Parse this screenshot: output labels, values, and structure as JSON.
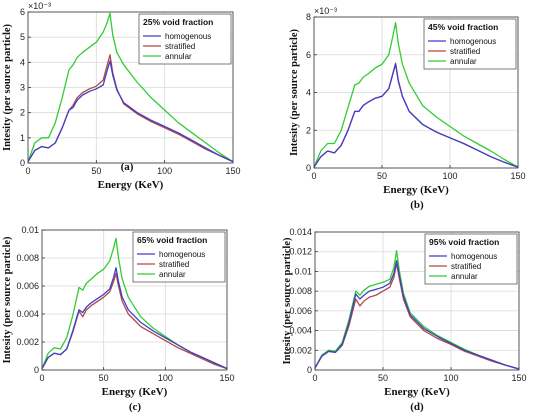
{
  "colors": {
    "homogenous": "#3f3fc8",
    "stratified": "#b04848",
    "annular": "#33cc33",
    "grid": "#d9d9d9",
    "axis": "#333333"
  },
  "chart_data": [
    {
      "type": "line",
      "panel": "(a)",
      "legend_title": "25% void fraction",
      "legend_placement": "top-right",
      "grid": true,
      "xlabel": "Energy (KeV)",
      "ylabel": "Intesity (per source particle)",
      "scale_label": "×10⁻³",
      "xlim": [
        0,
        150
      ],
      "ylim": [
        0,
        6
      ],
      "xticks": [
        0,
        50,
        100,
        150
      ],
      "xtick_labels": [
        "0",
        "50",
        "100",
        "150"
      ],
      "yticks": [
        0,
        1,
        2,
        3,
        4,
        5,
        6
      ],
      "ytick_labels": [
        "0",
        "1",
        "2",
        "3",
        "4",
        "5",
        "6"
      ],
      "x": [
        0,
        5,
        10,
        15,
        20,
        25,
        30,
        33,
        36,
        40,
        45,
        50,
        55,
        58,
        60,
        62,
        65,
        70,
        80,
        90,
        100,
        110,
        120,
        130,
        140,
        150
      ],
      "series": [
        {
          "name": "homogenous",
          "values": [
            0.05,
            0.5,
            0.65,
            0.6,
            0.8,
            1.4,
            2.1,
            2.2,
            2.5,
            2.7,
            2.85,
            2.95,
            3.1,
            3.7,
            4.05,
            3.5,
            2.9,
            2.4,
            2.0,
            1.7,
            1.45,
            1.2,
            0.9,
            0.6,
            0.3,
            0.05
          ]
        },
        {
          "name": "stratified",
          "values": [
            0.05,
            0.5,
            0.65,
            0.6,
            0.8,
            1.4,
            2.1,
            2.3,
            2.6,
            2.8,
            2.95,
            3.05,
            3.3,
            3.9,
            4.3,
            3.6,
            2.95,
            2.35,
            1.95,
            1.65,
            1.4,
            1.15,
            0.85,
            0.55,
            0.3,
            0.05
          ]
        },
        {
          "name": "annular",
          "values": [
            0.05,
            0.8,
            1.0,
            1.0,
            1.6,
            2.6,
            3.7,
            3.9,
            4.2,
            4.4,
            4.6,
            4.8,
            5.2,
            5.6,
            5.95,
            5.1,
            4.4,
            3.9,
            3.2,
            2.6,
            2.1,
            1.6,
            1.2,
            0.8,
            0.4,
            0.05
          ]
        }
      ]
    },
    {
      "type": "line",
      "panel": "(b)",
      "legend_title": "45% void fraction",
      "legend_placement": "top-right",
      "grid": true,
      "xlabel": "Energy (KeV)",
      "ylabel": "Intesity (per source particle)",
      "scale_label": "×10⁻³",
      "xlim": [
        0,
        150
      ],
      "ylim": [
        0,
        8
      ],
      "xticks": [
        0,
        50,
        100,
        150
      ],
      "xtick_labels": [
        "0",
        "50",
        "100",
        "150"
      ],
      "yticks": [
        0,
        2,
        4,
        6,
        8
      ],
      "ytick_labels": [
        "0",
        "2",
        "4",
        "6",
        "8"
      ],
      "x": [
        0,
        5,
        10,
        15,
        20,
        25,
        30,
        33,
        36,
        40,
        45,
        50,
        55,
        58,
        60,
        62,
        65,
        70,
        80,
        90,
        100,
        110,
        120,
        130,
        140,
        150
      ],
      "series": [
        {
          "name": "homogenous",
          "values": [
            0.05,
            0.6,
            0.9,
            0.8,
            1.2,
            2.0,
            3.0,
            3.0,
            3.3,
            3.5,
            3.7,
            3.8,
            4.2,
            5.0,
            5.5,
            4.6,
            3.8,
            3.0,
            2.3,
            1.9,
            1.6,
            1.3,
            0.95,
            0.6,
            0.3,
            0.05
          ]
        },
        {
          "name": "stratified",
          "values": [
            0.05,
            0.6,
            0.9,
            0.8,
            1.2,
            2.0,
            3.0,
            3.0,
            3.3,
            3.5,
            3.7,
            3.8,
            4.2,
            5.0,
            5.55,
            4.65,
            3.8,
            3.0,
            2.3,
            1.9,
            1.6,
            1.3,
            0.95,
            0.6,
            0.3,
            0.05
          ]
        },
        {
          "name": "annular",
          "values": [
            0.05,
            0.9,
            1.3,
            1.3,
            2.0,
            3.2,
            4.4,
            4.5,
            4.8,
            5.0,
            5.3,
            5.5,
            6.0,
            7.0,
            7.7,
            6.6,
            5.5,
            4.5,
            3.3,
            2.7,
            2.2,
            1.7,
            1.3,
            0.9,
            0.45,
            0.05
          ]
        }
      ]
    },
    {
      "type": "line",
      "panel": "(c)",
      "legend_title": "65% void fraction",
      "legend_placement": "top-right",
      "grid": true,
      "xlabel": "Energy (KeV)",
      "ylabel": "Intesity (per source particle)",
      "xlim": [
        0,
        150
      ],
      "ylim": [
        0,
        0.01
      ],
      "xticks": [
        0,
        50,
        100,
        150
      ],
      "xtick_labels": [
        "0",
        "50",
        "100",
        "150"
      ],
      "yticks": [
        0,
        0.002,
        0.004,
        0.006,
        0.008,
        0.01
      ],
      "ytick_labels": [
        "0",
        "0.002",
        "0.004",
        "0.006",
        "0.008",
        "0.01"
      ],
      "x": [
        0,
        5,
        10,
        15,
        20,
        25,
        30,
        33,
        36,
        40,
        45,
        50,
        55,
        58,
        60,
        62,
        65,
        70,
        80,
        90,
        100,
        110,
        120,
        130,
        140,
        150
      ],
      "series": [
        {
          "name": "homogenous",
          "values": [
            0.0001,
            0.0009,
            0.0012,
            0.0011,
            0.0015,
            0.0028,
            0.0043,
            0.0041,
            0.0045,
            0.0048,
            0.0051,
            0.0054,
            0.0058,
            0.0066,
            0.0073,
            0.0063,
            0.0052,
            0.0043,
            0.0034,
            0.0028,
            0.0023,
            0.0018,
            0.0013,
            0.0009,
            0.0005,
            0.0001
          ]
        },
        {
          "name": "stratified",
          "values": [
            0.0001,
            0.0009,
            0.0012,
            0.0011,
            0.0015,
            0.0027,
            0.0042,
            0.0038,
            0.0043,
            0.0046,
            0.0049,
            0.0052,
            0.0056,
            0.0063,
            0.0069,
            0.006,
            0.0049,
            0.004,
            0.0031,
            0.0026,
            0.0021,
            0.0016,
            0.0012,
            0.0008,
            0.0004,
            0.0001
          ]
        },
        {
          "name": "annular",
          "values": [
            0.0001,
            0.0012,
            0.0016,
            0.0015,
            0.0023,
            0.0039,
            0.0059,
            0.0057,
            0.0062,
            0.0065,
            0.0069,
            0.0072,
            0.0078,
            0.0087,
            0.0094,
            0.008,
            0.0065,
            0.0052,
            0.0038,
            0.003,
            0.0024,
            0.0018,
            0.0013,
            0.0009,
            0.0005,
            0.0001
          ]
        }
      ]
    },
    {
      "type": "line",
      "panel": "(d)",
      "legend_title": "95% void fraction",
      "legend_placement": "top-right",
      "grid": true,
      "xlabel": "Energy (KeV)",
      "ylabel": "Intesity (per source particle)",
      "xlim": [
        0,
        150
      ],
      "ylim": [
        0,
        0.014
      ],
      "xticks": [
        0,
        50,
        100,
        150
      ],
      "xtick_labels": [
        "0",
        "50",
        "100",
        "150"
      ],
      "yticks": [
        0,
        0.002,
        0.004,
        0.006,
        0.008,
        0.01,
        0.012,
        0.014
      ],
      "ytick_labels": [
        "0",
        "0.002",
        "0.004",
        "0.006",
        "0.008",
        "0.01",
        "0.012",
        "0.014"
      ],
      "x": [
        0,
        5,
        10,
        15,
        20,
        25,
        30,
        33,
        36,
        40,
        45,
        50,
        55,
        58,
        60,
        62,
        65,
        70,
        80,
        90,
        100,
        110,
        120,
        130,
        140,
        150
      ],
      "series": [
        {
          "name": "homogenous",
          "values": [
            0.0002,
            0.0014,
            0.0019,
            0.0018,
            0.0026,
            0.0048,
            0.0077,
            0.0072,
            0.0076,
            0.008,
            0.0082,
            0.0084,
            0.0088,
            0.0098,
            0.0111,
            0.0096,
            0.0075,
            0.0056,
            0.0042,
            0.0034,
            0.0027,
            0.002,
            0.0015,
            0.001,
            0.0005,
            0.0001
          ]
        },
        {
          "name": "stratified",
          "values": [
            0.0002,
            0.0014,
            0.0019,
            0.0018,
            0.0025,
            0.0045,
            0.0072,
            0.0065,
            0.007,
            0.0074,
            0.0076,
            0.008,
            0.0084,
            0.0094,
            0.0108,
            0.0093,
            0.0072,
            0.0054,
            0.004,
            0.0032,
            0.0026,
            0.0019,
            0.0014,
            0.0009,
            0.0005,
            0.0001
          ]
        },
        {
          "name": "annular",
          "values": [
            0.0002,
            0.0015,
            0.002,
            0.0019,
            0.0028,
            0.0051,
            0.008,
            0.0076,
            0.0081,
            0.0085,
            0.0087,
            0.0089,
            0.0092,
            0.0104,
            0.0121,
            0.0101,
            0.0078,
            0.0058,
            0.0044,
            0.0035,
            0.0028,
            0.0021,
            0.0015,
            0.001,
            0.0005,
            0.0001
          ]
        }
      ]
    }
  ]
}
